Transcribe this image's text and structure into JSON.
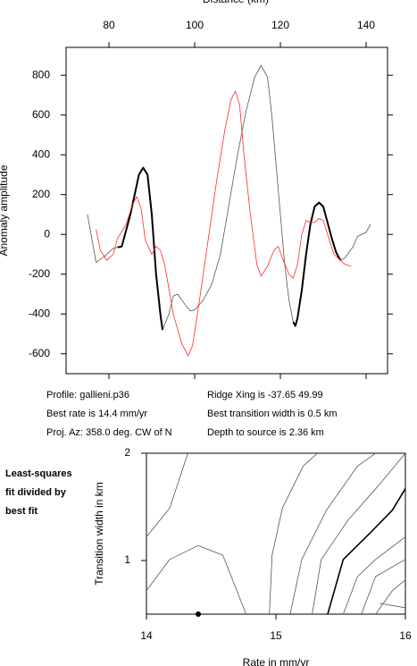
{
  "chart_data": [
    {
      "type": "line",
      "xlabel": "Distance (km)",
      "ylabel": "Anomaly amplitude",
      "xlim": [
        70,
        145
      ],
      "xticks": [
        80,
        100,
        120,
        140
      ],
      "ylim": [
        -700,
        940
      ],
      "yticks": [
        800,
        600,
        400,
        200,
        0,
        -200,
        -400,
        -600
      ],
      "series": [
        {
          "color": "#555555",
          "linewidth": 0.8,
          "x": [
            75,
            77,
            79,
            81,
            83,
            85,
            87,
            88,
            89,
            90,
            91,
            92,
            92.5,
            94,
            95,
            96,
            98,
            99,
            100,
            102,
            104,
            106,
            108,
            110,
            112,
            114,
            115.5,
            117,
            118,
            119,
            120,
            121,
            122,
            123,
            123.5,
            124,
            125,
            126,
            127,
            128,
            129,
            130,
            131,
            132,
            133,
            134,
            135,
            137,
            138,
            140,
            141
          ],
          "values": [
            100,
            -140,
            -110,
            -70,
            -60,
            100,
            300,
            335,
            300,
            100,
            -200,
            -400,
            -480,
            -400,
            -310,
            -300,
            -360,
            -385,
            -380,
            -330,
            -250,
            -100,
            150,
            400,
            620,
            790,
            850,
            790,
            600,
            350,
            100,
            -150,
            -330,
            -440,
            -460,
            -420,
            -280,
            -100,
            50,
            140,
            160,
            140,
            60,
            -20,
            -90,
            -130,
            -120,
            -60,
            -10,
            10,
            50
          ]
        },
        {
          "color": "#000000",
          "linewidth": 2,
          "x": [
            82,
            83,
            85,
            87,
            88,
            89,
            90,
            91,
            92,
            92.5,
            null,
            123,
            123.5,
            124,
            125,
            126,
            127,
            128,
            129,
            130,
            131,
            132,
            133,
            134
          ],
          "values": [
            -65,
            -60,
            100,
            300,
            335,
            300,
            100,
            -200,
            -400,
            -480,
            null,
            -440,
            -460,
            -420,
            -280,
            -100,
            50,
            140,
            160,
            140,
            60,
            -20,
            -90,
            -130
          ]
        },
        {
          "color": "#ff2a2a",
          "linewidth": 0.8,
          "x": [
            77,
            78,
            79.5,
            81,
            82,
            84,
            85.5,
            86.5,
            87.5,
            88.5,
            90,
            91,
            92,
            93,
            95,
            97,
            98.5,
            99.5,
            101,
            103,
            105,
            107,
            108.5,
            109.5,
            110.5,
            111.5,
            113,
            114.5,
            115.5,
            117,
            118.5,
            119.5,
            120.5,
            122,
            123,
            124,
            125,
            126,
            127,
            128,
            129,
            130,
            131,
            132.5,
            135,
            136.5
          ],
          "values": [
            25,
            -80,
            -130,
            -100,
            -20,
            50,
            150,
            190,
            130,
            -30,
            -100,
            -60,
            -80,
            -150,
            -400,
            -550,
            -610,
            -560,
            -350,
            -50,
            250,
            520,
            680,
            720,
            650,
            400,
            100,
            -150,
            -210,
            -160,
            -80,
            -60,
            -120,
            -200,
            -220,
            -150,
            0,
            70,
            60,
            60,
            80,
            70,
            0,
            -100,
            -150,
            -160
          ]
        }
      ],
      "annotations": [
        "Profile: gallieni.p36",
        "Ridge Xing is -37.65 49.99",
        "Best rate is 14.4 mm/yr",
        "Best transition width is 0.5 km",
        "Proj. Az: 358.0 deg. CW of N",
        "Depth to source is   2.36 km"
      ]
    },
    {
      "type": "contour",
      "xlabel": "Rate in mm/yr",
      "ylabel": "Transition width in km",
      "title": [
        "Least-squares",
        "fit divided by",
        "best fit"
      ],
      "xlim": [
        14,
        16
      ],
      "xticks": [
        14,
        15,
        16
      ],
      "ylim": [
        0.5,
        2
      ],
      "yticks": [
        1,
        2
      ],
      "point": {
        "x": 14.4,
        "y": 0.5
      },
      "series": [
        {
          "color": "#555555",
          "linewidth": 0.8,
          "x": [
            14,
            14.18,
            14.32
          ],
          "values": [
            1.22,
            1.49,
            2.0
          ]
        },
        {
          "color": "#555555",
          "linewidth": 0.8,
          "x": [
            14,
            14.18,
            14.4,
            14.59,
            14.77
          ],
          "values": [
            0.72,
            1.01,
            1.14,
            1.05,
            0.5
          ]
        },
        {
          "color": "#555555",
          "linewidth": 0.8,
          "x": [
            14.95,
            14.97,
            15.05,
            15.21,
            15.32
          ],
          "values": [
            0.5,
            1.05,
            1.49,
            1.88,
            2.0
          ]
        },
        {
          "color": "#555555",
          "linewidth": 0.8,
          "x": [
            15.11,
            15.2,
            15.39,
            15.63,
            15.77
          ],
          "values": [
            0.5,
            1.01,
            1.47,
            1.88,
            2.0
          ]
        },
        {
          "color": "#555555",
          "linewidth": 0.8,
          "x": [
            15.28,
            15.35,
            15.56,
            15.8,
            16
          ],
          "values": [
            0.5,
            1.01,
            1.38,
            1.71,
            2.0
          ]
        },
        {
          "color": "#000000",
          "linewidth": 1.6,
          "x": [
            15.4,
            15.52,
            15.73,
            15.9,
            16
          ],
          "values": [
            0.5,
            1.01,
            1.26,
            1.47,
            1.67
          ]
        },
        {
          "color": "#555555",
          "linewidth": 0.8,
          "x": [
            15.52,
            15.63,
            15.77,
            16
          ],
          "values": [
            0.5,
            0.85,
            1.01,
            1.22
          ]
        },
        {
          "color": "#555555",
          "linewidth": 0.8,
          "x": [
            15.66,
            15.77,
            16
          ],
          "values": [
            0.5,
            0.85,
            1.01
          ]
        },
        {
          "color": "#555555",
          "linewidth": 0.8,
          "x": [
            15.77,
            15.9,
            16
          ],
          "values": [
            0.5,
            0.72,
            0.82
          ]
        },
        {
          "color": "#555555",
          "linewidth": 0.8,
          "x": [
            15.8,
            16
          ],
          "values": [
            0.6,
            0.56
          ]
        }
      ]
    }
  ]
}
